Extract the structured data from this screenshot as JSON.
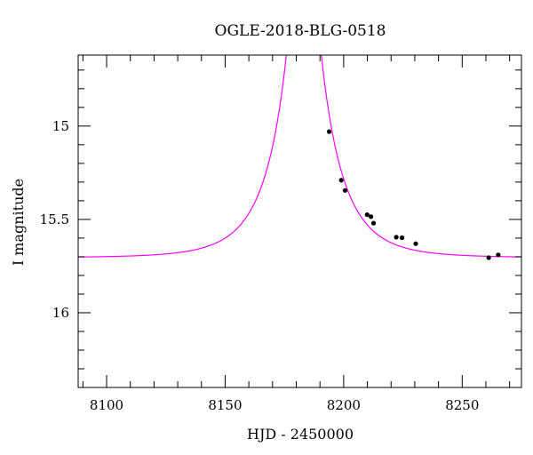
{
  "chart_data": {
    "type": "scatter",
    "title": "OGLE-2018-BLG-0518",
    "xlabel": "HJD - 2450000",
    "ylabel": "I magnitude",
    "xlim": [
      8088,
      8275
    ],
    "ylim": [
      16.4,
      14.62
    ],
    "y_inverted": true,
    "grid": false,
    "x_major_ticks": [
      8100,
      8150,
      8200,
      8250
    ],
    "x_minor_step": 10,
    "y_major_ticks": [
      15,
      15.5,
      16
    ],
    "y_minor_step": 0.1,
    "x_tick_labels": [
      "8100",
      "8150",
      "8200",
      "8250"
    ],
    "y_tick_labels": [
      "15",
      "15.5",
      "16"
    ],
    "model": {
      "type": "pspl",
      "t0": 8183.2,
      "u0": 0.12,
      "tE": 20,
      "baseline_mag": 15.705,
      "color": "#ff00ff"
    },
    "series": [
      {
        "marker_color": "#000000",
        "x": [
          8193.9,
          8199.0,
          8200.6,
          8209.9,
          8211.5,
          8212.6,
          8222.2,
          8224.6,
          8230.4,
          8261.2,
          8265.2
        ],
        "y": [
          15.03,
          15.29,
          15.345,
          15.475,
          15.485,
          15.52,
          15.595,
          15.598,
          15.63,
          15.705,
          15.69
        ]
      }
    ]
  }
}
